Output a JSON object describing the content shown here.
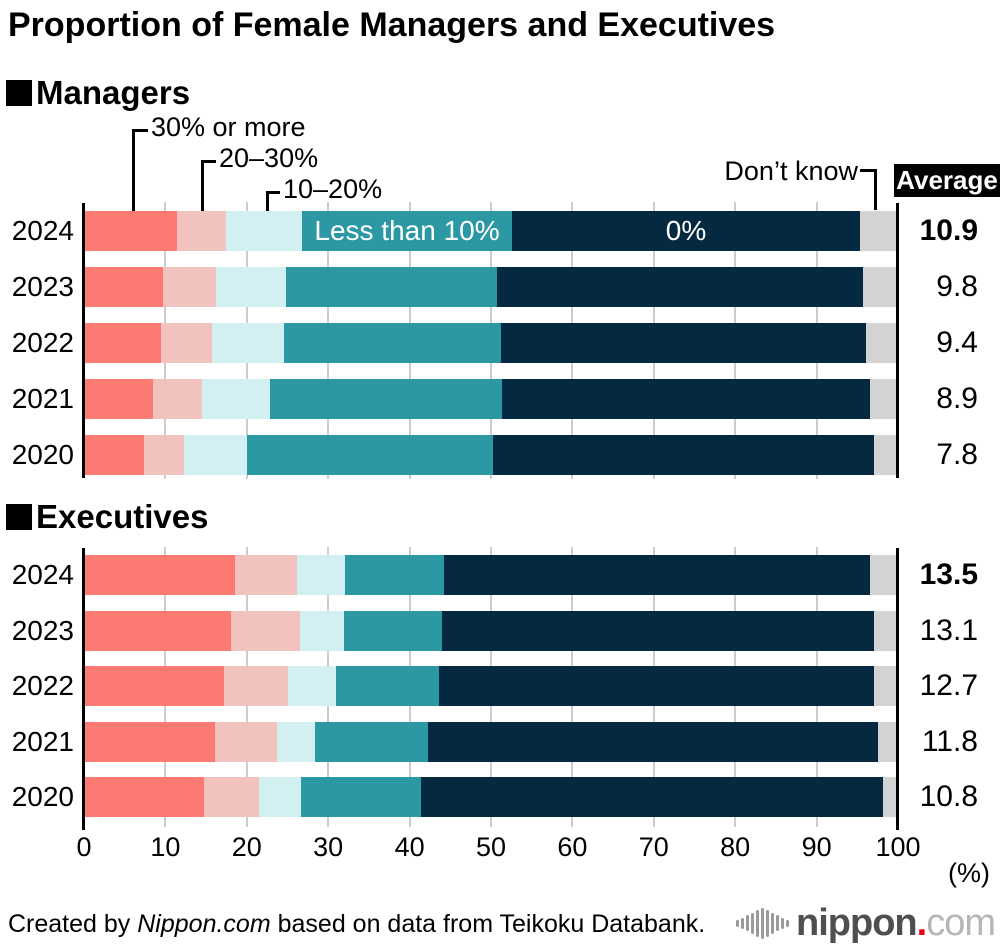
{
  "title": "Proportion of Female Managers and Executives",
  "sections": {
    "managers": "Managers",
    "executives": "Executives"
  },
  "legend": {
    "seg_30_plus": "30% or more",
    "seg_20_30": "20–30%",
    "seg_10_20": "10–20%",
    "seg_less_10": "Less than 10%",
    "seg_zero": "0%",
    "seg_dont_know": "Don’t know",
    "average_header": "Average"
  },
  "axis": {
    "ticks": [
      0,
      10,
      20,
      30,
      40,
      50,
      60,
      70,
      80,
      90,
      100
    ],
    "unit": "(%)",
    "xlim": [
      0,
      100
    ]
  },
  "colors": {
    "seg_30_plus": "#FC7A72",
    "seg_20_30": "#F2C2BE",
    "seg_10_20": "#D2F0F2",
    "seg_less_10": "#2B98A4",
    "seg_zero": "#042940",
    "seg_dont_know": "#D3D3D3",
    "gridline": "#CCCCCC",
    "axis": "#000000",
    "average_box_bg": "#000000",
    "average_box_text": "#FFFFFF",
    "logo_dot": "#E60012"
  },
  "chart_data": [
    {
      "type": "bar",
      "stacked": true,
      "orientation": "horizontal",
      "title": "Managers",
      "categories": [
        "2024",
        "2023",
        "2022",
        "2021",
        "2020"
      ],
      "series": [
        {
          "name": "30% or more",
          "color": "#FC7A72",
          "values": [
            11.4,
            9.7,
            9.5,
            8.5,
            7.4
          ]
        },
        {
          "name": "20–30%",
          "color": "#F2C2BE",
          "values": [
            6.1,
            6.5,
            6.2,
            6.0,
            4.9
          ]
        },
        {
          "name": "10–20%",
          "color": "#D2F0F2",
          "values": [
            9.3,
            8.6,
            8.9,
            8.4,
            7.7
          ]
        },
        {
          "name": "Less than 10%",
          "color": "#2B98A4",
          "values": [
            25.8,
            26.0,
            26.6,
            28.5,
            30.3
          ]
        },
        {
          "name": "0%",
          "color": "#042940",
          "values": [
            42.7,
            44.9,
            44.9,
            45.2,
            46.7
          ]
        },
        {
          "name": "Don’t know",
          "color": "#D3D3D3",
          "values": [
            4.7,
            4.3,
            3.9,
            3.4,
            3.0
          ]
        }
      ],
      "averages": [
        10.9,
        9.8,
        9.4,
        8.9,
        7.8
      ],
      "xlim": [
        0,
        100
      ]
    },
    {
      "type": "bar",
      "stacked": true,
      "orientation": "horizontal",
      "title": "Executives",
      "categories": [
        "2024",
        "2023",
        "2022",
        "2021",
        "2020"
      ],
      "series": [
        {
          "name": "30% or more",
          "color": "#FC7A72",
          "values": [
            18.6,
            18.0,
            17.2,
            16.1,
            14.7
          ]
        },
        {
          "name": "20–30%",
          "color": "#F2C2BE",
          "values": [
            7.6,
            8.5,
            7.9,
            7.6,
            6.8
          ]
        },
        {
          "name": "10–20%",
          "color": "#D2F0F2",
          "values": [
            5.9,
            5.4,
            5.9,
            4.7,
            5.1
          ]
        },
        {
          "name": "Less than 10%",
          "color": "#2B98A4",
          "values": [
            12.1,
            12.1,
            12.6,
            13.9,
            14.8
          ]
        },
        {
          "name": "0%",
          "color": "#042940",
          "values": [
            52.4,
            53.0,
            53.5,
            55.3,
            56.8
          ]
        },
        {
          "name": "Don’t know",
          "color": "#D3D3D3",
          "values": [
            3.4,
            3.0,
            2.9,
            2.4,
            1.8
          ]
        }
      ],
      "averages": [
        13.5,
        13.1,
        12.7,
        11.8,
        10.8
      ],
      "xlim": [
        0,
        100
      ]
    }
  ],
  "footer": {
    "credit_prefix": "Created by ",
    "credit_source": "Nippon.com",
    "credit_suffix": " based on data from Teikoku Databank.",
    "logo_name": "nippon",
    "logo_dot": ".",
    "logo_tld": "com"
  }
}
